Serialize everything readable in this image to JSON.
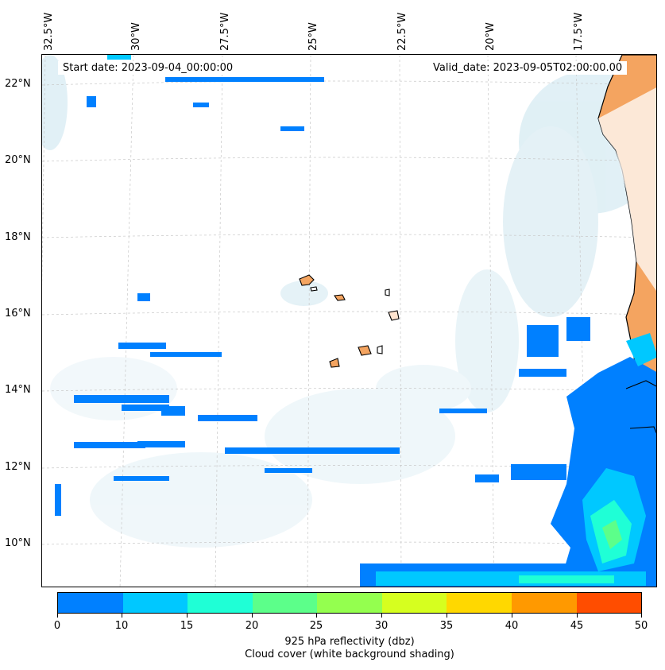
{
  "header": {
    "start_date": "Start date: 2023-09-04_00:00:00",
    "valid_date": "Valid_date: 2023-09-05T02:00:00.00"
  },
  "axes": {
    "lon_labels": [
      "32.5°W",
      "30°W",
      "27.5°W",
      "25°W",
      "22.5°W",
      "20°W",
      "17.5°W"
    ],
    "lat_labels": [
      "22°N",
      "20°N",
      "18°N",
      "16°N",
      "14°N",
      "12°N",
      "10°N"
    ]
  },
  "colorbar": {
    "ticks": [
      "0",
      "5",
      "10",
      "15",
      "20",
      "25",
      "30",
      "35",
      "40",
      "45",
      "50"
    ],
    "colors": [
      "#0080ff",
      "#00c8ff",
      "#1fffd6",
      "#5cff8a",
      "#94ff4f",
      "#d6ff1f",
      "#ffd800",
      "#ff9900",
      "#ff4d00"
    ],
    "label_line1": "925 hPa reflectivity (dbz)",
    "label_line2": "Cloud cover (white background shading)"
  },
  "map": {
    "land_color": "#f4a460",
    "cloud_color": "#c8e4ee",
    "grid_color": "#c8c8c8"
  }
}
